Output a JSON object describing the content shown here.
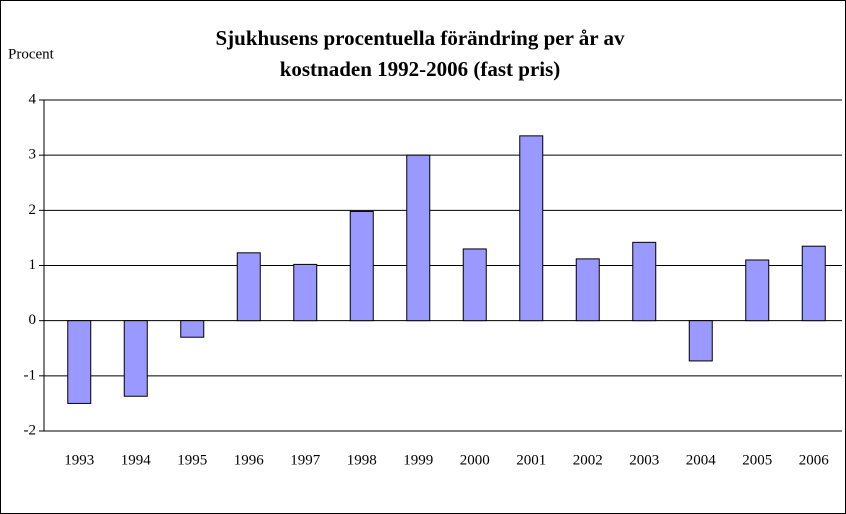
{
  "chart_data": {
    "type": "bar",
    "title": [
      "Sjukhusens procentuella förändring per år av",
      "kostnaden 1992-2006 (fast pris)"
    ],
    "y_label": "Procent",
    "categories": [
      "1993",
      "1994",
      "1995",
      "1996",
      "1997",
      "1998",
      "1999",
      "2000",
      "2001",
      "2002",
      "2003",
      "2004",
      "2005",
      "2006"
    ],
    "values": [
      -1.5,
      -1.37,
      -0.3,
      1.23,
      1.02,
      1.98,
      3.0,
      1.3,
      3.35,
      1.12,
      1.42,
      -0.73,
      1.1,
      1.35
    ],
    "color": "#9999ff",
    "ylim": [
      -2,
      4
    ],
    "yticks": [
      -2,
      -1,
      0,
      1,
      2,
      3,
      4
    ],
    "grid": true
  }
}
